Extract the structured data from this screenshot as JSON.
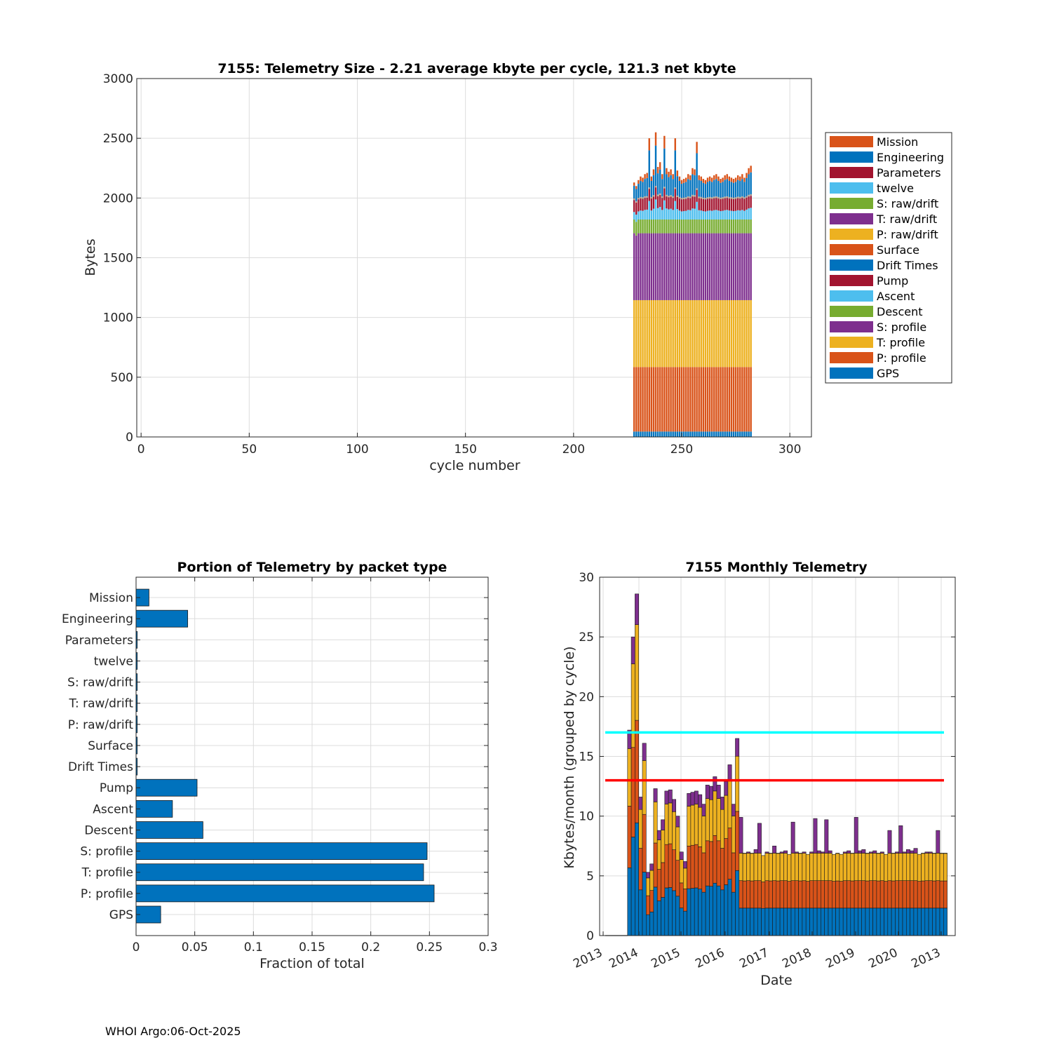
{
  "footer": "WHOI Argo:06-Oct-2025",
  "packet_types": [
    "GPS",
    "P: profile",
    "T: profile",
    "S: profile",
    "Descent",
    "Ascent",
    "Pump",
    "Drift Times",
    "Surface",
    "P: raw/drift",
    "T: raw/drift",
    "S: raw/drift",
    "twelve",
    "Parameters",
    "Engineering",
    "Mission"
  ],
  "colors": {
    "GPS": "#0072bd",
    "P: profile": "#d95319",
    "T: profile": "#edb120",
    "S: profile": "#7e2f8e",
    "Descent": "#77ac30",
    "Ascent": "#4dbeee",
    "Pump": "#a2142f",
    "Drift Times": "#0072bd",
    "Surface": "#d95319",
    "P: raw/drift": "#edb120",
    "T: raw/drift": "#7e2f8e",
    "S: raw/drift": "#77ac30",
    "twelve": "#4dbeee",
    "Parameters": "#a2142f",
    "Engineering": "#0072bd",
    "Mission": "#d95319",
    "bar": "#0072bd",
    "cyan_line": "#00ffff",
    "red_line": "#ff0000"
  },
  "chart_data": [
    {
      "id": "telemetry-size",
      "type": "bar",
      "stacked": true,
      "title": "7155: Telemetry Size - 2.21 average kbyte per cycle,  121.3 net kbyte",
      "xlabel": "cycle number",
      "ylabel": "Bytes",
      "xlim": [
        -2,
        310
      ],
      "ylim": [
        0,
        3000
      ],
      "xticks": [
        0,
        50,
        100,
        150,
        200,
        250,
        300
      ],
      "yticks": [
        0,
        500,
        1000,
        1500,
        2000,
        2500,
        3000
      ],
      "legend_position": "outside-right",
      "legend": [
        "Mission",
        "Engineering",
        "Parameters",
        "twelve",
        "S: raw/drift",
        "T: raw/drift",
        "P: raw/drift",
        "Surface",
        "Drift Times",
        "Pump",
        "Ascent",
        "Descent",
        "S: profile",
        "T: profile",
        "P: profile",
        "GPS"
      ],
      "cycle_start": 228,
      "cycle_end": 282,
      "typical_stack_bytes": {
        "GPS": 45,
        "P: profile": 540,
        "T: profile": 560,
        "S: profile": 560,
        "Descent": 115,
        "Ascent": 60,
        "Pump": 100,
        "Drift Times": 2,
        "Surface": 2,
        "P: raw/drift": 2,
        "T: raw/drift": 2,
        "S: raw/drift": 2,
        "twelve": 2,
        "Parameters": 2,
        "Engineering": 100,
        "Mission": 25
      },
      "cycle_totals": [
        2130,
        2100,
        2150,
        2180,
        2170,
        2200,
        2210,
        2500,
        2180,
        2240,
        2550,
        2260,
        2300,
        2200,
        2520,
        2250,
        2220,
        2240,
        2200,
        2500,
        2230,
        2180,
        2150,
        2160,
        2170,
        2200,
        2190,
        2250,
        2240,
        2470,
        2190,
        2180,
        2160,
        2150,
        2170,
        2180,
        2170,
        2190,
        2200,
        2180,
        2160,
        2170,
        2190,
        2200,
        2180,
        2170,
        2160,
        2170,
        2190,
        2180,
        2200,
        2170,
        2210,
        2250,
        2270
      ]
    },
    {
      "id": "portion-by-packet",
      "type": "bar",
      "orientation": "horizontal",
      "title": "Portion of Telemetry by packet type",
      "xlabel": "Fraction of total",
      "ylabel": "",
      "xlim": [
        0,
        0.3
      ],
      "xticks": [
        0,
        0.05,
        0.1,
        0.15,
        0.2,
        0.25,
        0.3
      ],
      "xtick_labels": [
        "0",
        "0.05",
        "0.1",
        "0.15",
        "0.2",
        "0.25",
        "0.3"
      ],
      "categories": [
        "GPS",
        "P: profile",
        "T: profile",
        "S: profile",
        "Descent",
        "Ascent",
        "Pump",
        "Drift Times",
        "Surface",
        "P: raw/drift",
        "T: raw/drift",
        "S: raw/drift",
        "twelve",
        "Parameters",
        "Engineering",
        "Mission"
      ],
      "values": [
        0.021,
        0.254,
        0.245,
        0.248,
        0.057,
        0.031,
        0.052,
        0.001,
        0.001,
        0.001,
        0.001,
        0.001,
        0.001,
        0.001,
        0.044,
        0.011
      ]
    },
    {
      "id": "monthly-telemetry",
      "type": "bar",
      "stacked": true,
      "title": "7155 Monthly Telemetry",
      "xlabel": "Date",
      "ylabel": "Kbytes/month (grouped by cycle)",
      "ylim": [
        0,
        30
      ],
      "yticks": [
        0,
        5,
        10,
        15,
        20,
        25,
        30
      ],
      "xtick_labels": [
        "2013",
        "2014",
        "2015",
        "2016",
        "2017",
        "2018",
        "2019",
        "2020",
        "2013"
      ],
      "series_names": [
        "GPS",
        "P: profile",
        "T: profile",
        "S: profile"
      ],
      "hlines": [
        {
          "name": "cyan-limit",
          "value": 17,
          "color": "#00ffff"
        },
        {
          "name": "red-limit",
          "value": 13,
          "color": "#ff0000"
        }
      ],
      "empty_months": 6,
      "month_totals": [
        17.2,
        25.0,
        28.6,
        11.6,
        16.1,
        5.3,
        6.0,
        12.3,
        8.8,
        9.7,
        12.1,
        12.2,
        11.4,
        10.0,
        7.0,
        6.2,
        11.9,
        12.0,
        12.1,
        11.8,
        11.0,
        12.6,
        12.5,
        13.3,
        12.6,
        11.6,
        12.9,
        14.3,
        11.0,
        16.5,
        9.9,
        6.9,
        7.0,
        6.9,
        7.2,
        9.4,
        6.7,
        7.0,
        6.9,
        7.5,
        6.9,
        7.0,
        7.1,
        6.8,
        9.5,
        7.0,
        6.9,
        7.0,
        6.8,
        7.0,
        9.8,
        7.1,
        7.0,
        9.7,
        7.1,
        6.8,
        6.9,
        6.8,
        7.0,
        7.1,
        6.9,
        9.9,
        7.1,
        7.2,
        6.9,
        7.0,
        7.1,
        6.9,
        7.0,
        6.8,
        8.8,
        6.9,
        7.0,
        9.2,
        7.0,
        7.2,
        7.1,
        7.3,
        6.8,
        6.9,
        7.0,
        7.0,
        6.9,
        8.8,
        6.9,
        6.9
      ],
      "typical_split": {
        "GPS": 2.3,
        "P: profile": 2.3,
        "T: profile": 2.3,
        "S: profile": 0.1
      }
    }
  ]
}
